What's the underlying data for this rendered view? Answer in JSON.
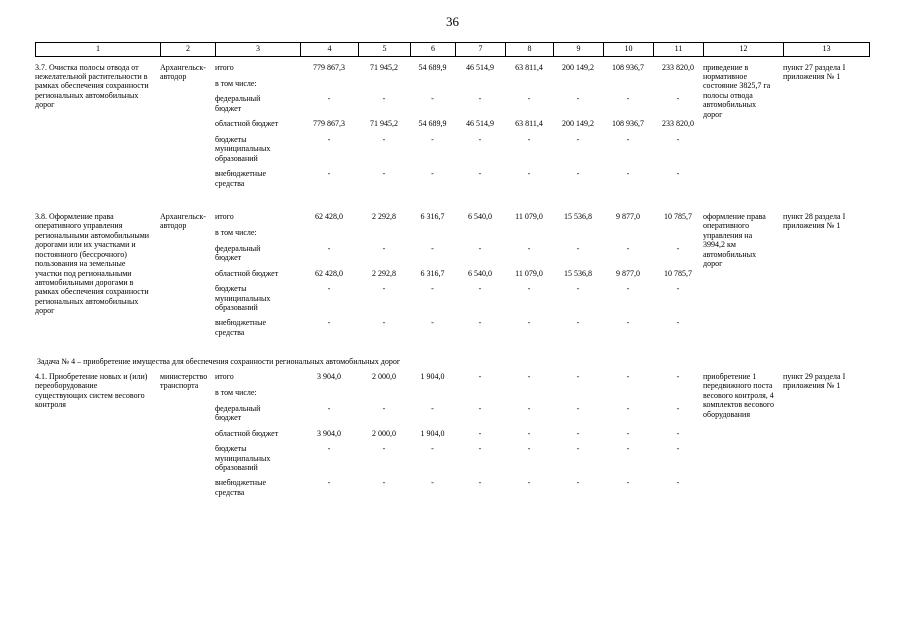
{
  "page_number": "36",
  "table": {
    "column_numbers": [
      "1",
      "2",
      "3",
      "4",
      "5",
      "6",
      "7",
      "8",
      "9",
      "10",
      "11",
      "12",
      "13"
    ],
    "body": [
      {
        "type": "row",
        "title": "3.7. Очистка полосы отвода от нежелательной растительности в рамках обеспечения сохранности региональных автомобильных дорог",
        "executor": "Архангельск-автодор",
        "lines": [
          {
            "label": "итого",
            "values": [
              "779 867,3",
              "71 945,2",
              "54 689,9",
              "46 514,9",
              "63 811,4",
              "200 149,2",
              "108 936,7",
              "233 820,0"
            ]
          },
          {
            "label": "в том числе:",
            "values": [
              "",
              "",
              "",
              "",
              "",
              "",
              "",
              ""
            ]
          },
          {
            "label": "федеральный бюджет",
            "values": [
              "-",
              "-",
              "-",
              "-",
              "-",
              "-",
              "-",
              "-"
            ]
          },
          {
            "label": "областной бюджет",
            "values": [
              "779 867,3",
              "71 945,2",
              "54 689,9",
              "46 514,9",
              "63 811,4",
              "200 149,2",
              "108 936,7",
              "233 820,0"
            ]
          },
          {
            "label": "бюджеты муниципальных образований",
            "values": [
              "-",
              "-",
              "-",
              "-",
              "-",
              "-",
              "-",
              "-"
            ]
          },
          {
            "label": "внебюджетные средства",
            "values": [
              "-",
              "-",
              "-",
              "-",
              "-",
              "-",
              "-",
              "-"
            ]
          }
        ],
        "result": "приведение в нормативное состояние 3825,7 га полосы отвода автомобильных дорог",
        "reference": "пункт 27 раздела I приложения № 1"
      },
      {
        "type": "row",
        "title": "3.8. Оформление права оперативного управления региональными автомобильными дорогами или их участками и постоянного (бессрочного) пользования на земельные участки под региональными автомобильными дорогами в рамках обеспечения сохранности региональных автомобильных дорог",
        "executor": "Архангельск-автодор",
        "lines": [
          {
            "label": "итого",
            "values": [
              "62 428,0",
              "2 292,8",
              "6 316,7",
              "6 540,0",
              "11 079,0",
              "15 536,8",
              "9 877,0",
              "10 785,7"
            ]
          },
          {
            "label": "в том числе:",
            "values": [
              "",
              "",
              "",
              "",
              "",
              "",
              "",
              ""
            ]
          },
          {
            "label": "федеральный бюджет",
            "values": [
              "-",
              "-",
              "-",
              "-",
              "-",
              "-",
              "-",
              "-"
            ]
          },
          {
            "label": "областной бюджет",
            "values": [
              "62 428,0",
              "2 292,8",
              "6 316,7",
              "6 540,0",
              "11 079,0",
              "15 536,8",
              "9 877,0",
              "10 785,7"
            ]
          },
          {
            "label": "бюджеты муниципальных образований",
            "values": [
              "-",
              "-",
              "-",
              "-",
              "-",
              "-",
              "-",
              "-"
            ]
          },
          {
            "label": "внебюджетные средства",
            "values": [
              "-",
              "-",
              "-",
              "-",
              "-",
              "-",
              "-",
              "-"
            ]
          }
        ],
        "result": "оформление права оперативного управления на 3994,2 км автомобильных дорог",
        "reference": "пункт 28 раздела I приложения № 1"
      },
      {
        "type": "section",
        "text": "Задача № 4 – приобретение имущества для обеспечения сохранности региональных автомобильных дорог"
      },
      {
        "type": "row",
        "title": "4.1. Приобретение новых и (или) переоборудование существующих систем весового контроля",
        "executor": "министерство транспорта",
        "lines": [
          {
            "label": "итого",
            "values": [
              "3 904,0",
              "2 000,0",
              "1 904,0",
              "-",
              "-",
              "-",
              "-",
              "-"
            ]
          },
          {
            "label": "в том числе:",
            "values": [
              "",
              "",
              "",
              "",
              "",
              "",
              "",
              ""
            ]
          },
          {
            "label": "федеральный бюджет",
            "values": [
              "-",
              "-",
              "-",
              "-",
              "-",
              "-",
              "-",
              "-"
            ]
          },
          {
            "label": "областной бюджет",
            "values": [
              "3 904,0",
              "2 000,0",
              "1 904,0",
              "-",
              "-",
              "-",
              "-",
              "-"
            ]
          },
          {
            "label": "бюджеты муниципальных образований",
            "values": [
              "-",
              "-",
              "-",
              "-",
              "-",
              "-",
              "-",
              "-"
            ]
          },
          {
            "label": "внебюджетные средства",
            "values": [
              "-",
              "-",
              "-",
              "-",
              "-",
              "-",
              "-",
              "-"
            ]
          }
        ],
        "result": "приобретение 1 передвижного поста весового контроля, 4 комплектов весового оборудования",
        "reference": "пункт 29 раздела I приложения № 1"
      }
    ]
  }
}
